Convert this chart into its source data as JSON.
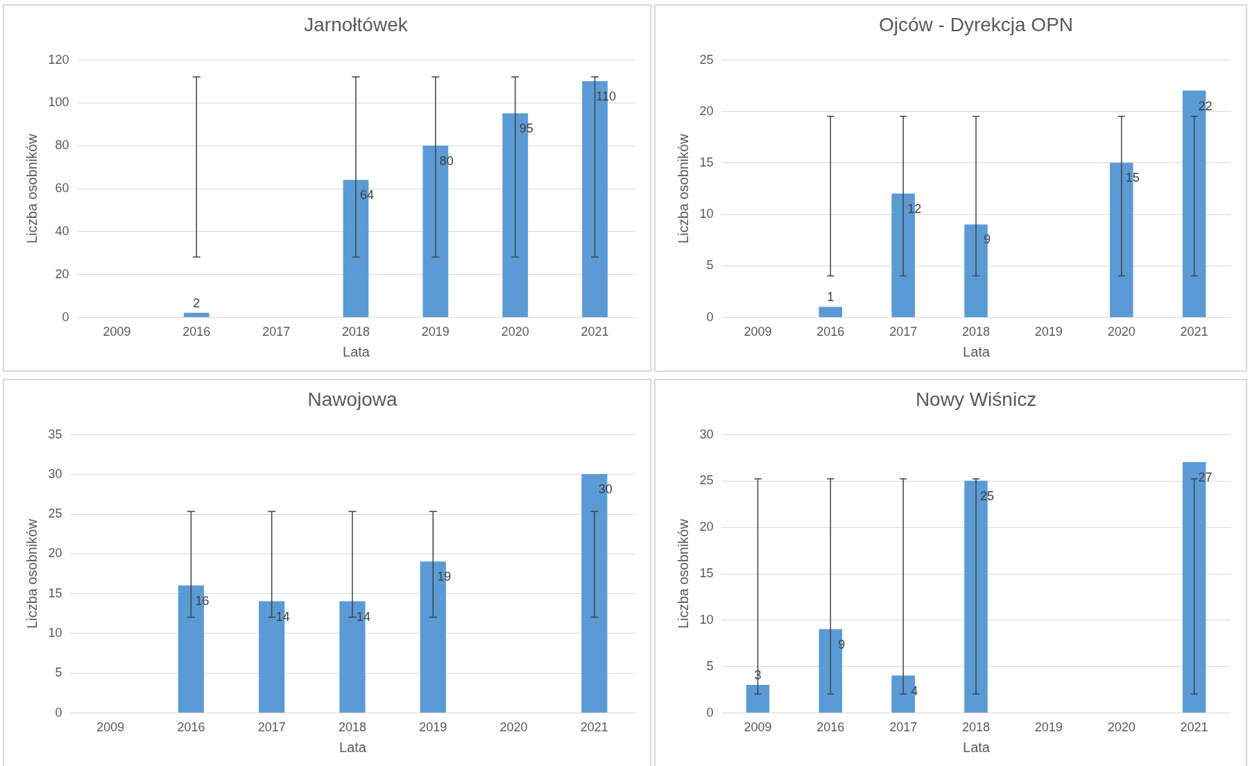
{
  "chart_data": [
    {
      "type": "bar",
      "title": "Jarnołtówek",
      "xlabel": "Lata",
      "ylabel": "Liczba osobników",
      "categories": [
        "2009",
        "2016",
        "2017",
        "2018",
        "2019",
        "2020",
        "2021"
      ],
      "values": [
        null,
        2,
        null,
        64,
        80,
        95,
        110
      ],
      "errors": [
        null,
        [
          28,
          112
        ],
        null,
        [
          28,
          112
        ],
        [
          28,
          112
        ],
        [
          28,
          112
        ],
        [
          28,
          112
        ]
      ],
      "color": "#5b9bd5",
      "ylim": [
        0,
        120
      ],
      "yticks": [
        0,
        20,
        40,
        60,
        80,
        100,
        120
      ],
      "grid": "y",
      "data_labels": true
    },
    {
      "type": "bar",
      "title": "Ojców - Dyrekcja OPN",
      "xlabel": "Lata",
      "ylabel": "Liczba osobników",
      "categories": [
        "2009",
        "2016",
        "2017",
        "2018",
        "2019",
        "2020",
        "2021"
      ],
      "values": [
        null,
        1,
        12,
        9,
        null,
        15,
        22
      ],
      "errors": [
        null,
        [
          4,
          19.5
        ],
        [
          4,
          19.5
        ],
        [
          4,
          19.5
        ],
        null,
        [
          4,
          19.5
        ],
        [
          4,
          19.5
        ]
      ],
      "color": "#5b9bd5",
      "ylim": [
        0,
        25
      ],
      "yticks": [
        0,
        5,
        10,
        15,
        20,
        25
      ],
      "grid": "y",
      "data_labels": true
    },
    {
      "type": "bar",
      "title": "Nawojowa",
      "xlabel": "Lata",
      "ylabel": "Liczba osobników",
      "categories": [
        "2009",
        "2016",
        "2017",
        "2018",
        "2019",
        "2020",
        "2021"
      ],
      "values": [
        null,
        16,
        14,
        14,
        19,
        null,
        30
      ],
      "errors": [
        null,
        [
          12,
          25.3
        ],
        [
          12,
          25.3
        ],
        [
          12,
          25.3
        ],
        [
          12,
          25.3
        ],
        null,
        [
          12,
          25.3
        ]
      ],
      "color": "#5b9bd5",
      "ylim": [
        0,
        35
      ],
      "yticks": [
        0,
        5,
        10,
        15,
        20,
        25,
        30,
        35
      ],
      "grid": "y",
      "data_labels": true
    },
    {
      "type": "bar",
      "title": "Nowy Wiśnicz",
      "xlabel": "Lata",
      "ylabel": "Liczba osobników",
      "categories": [
        "2009",
        "2016",
        "2017",
        "2018",
        "2019",
        "2020",
        "2021"
      ],
      "values": [
        3,
        9,
        4,
        25,
        null,
        null,
        27
      ],
      "errors": [
        [
          2,
          25.2
        ],
        [
          2,
          25.2
        ],
        [
          2,
          25.2
        ],
        [
          2,
          25.2
        ],
        null,
        null,
        [
          2,
          25.2
        ]
      ],
      "color": "#5b9bd5",
      "ylim": [
        0,
        30
      ],
      "yticks": [
        0,
        5,
        10,
        15,
        20,
        25,
        30
      ],
      "grid": "y",
      "data_labels": true
    }
  ]
}
